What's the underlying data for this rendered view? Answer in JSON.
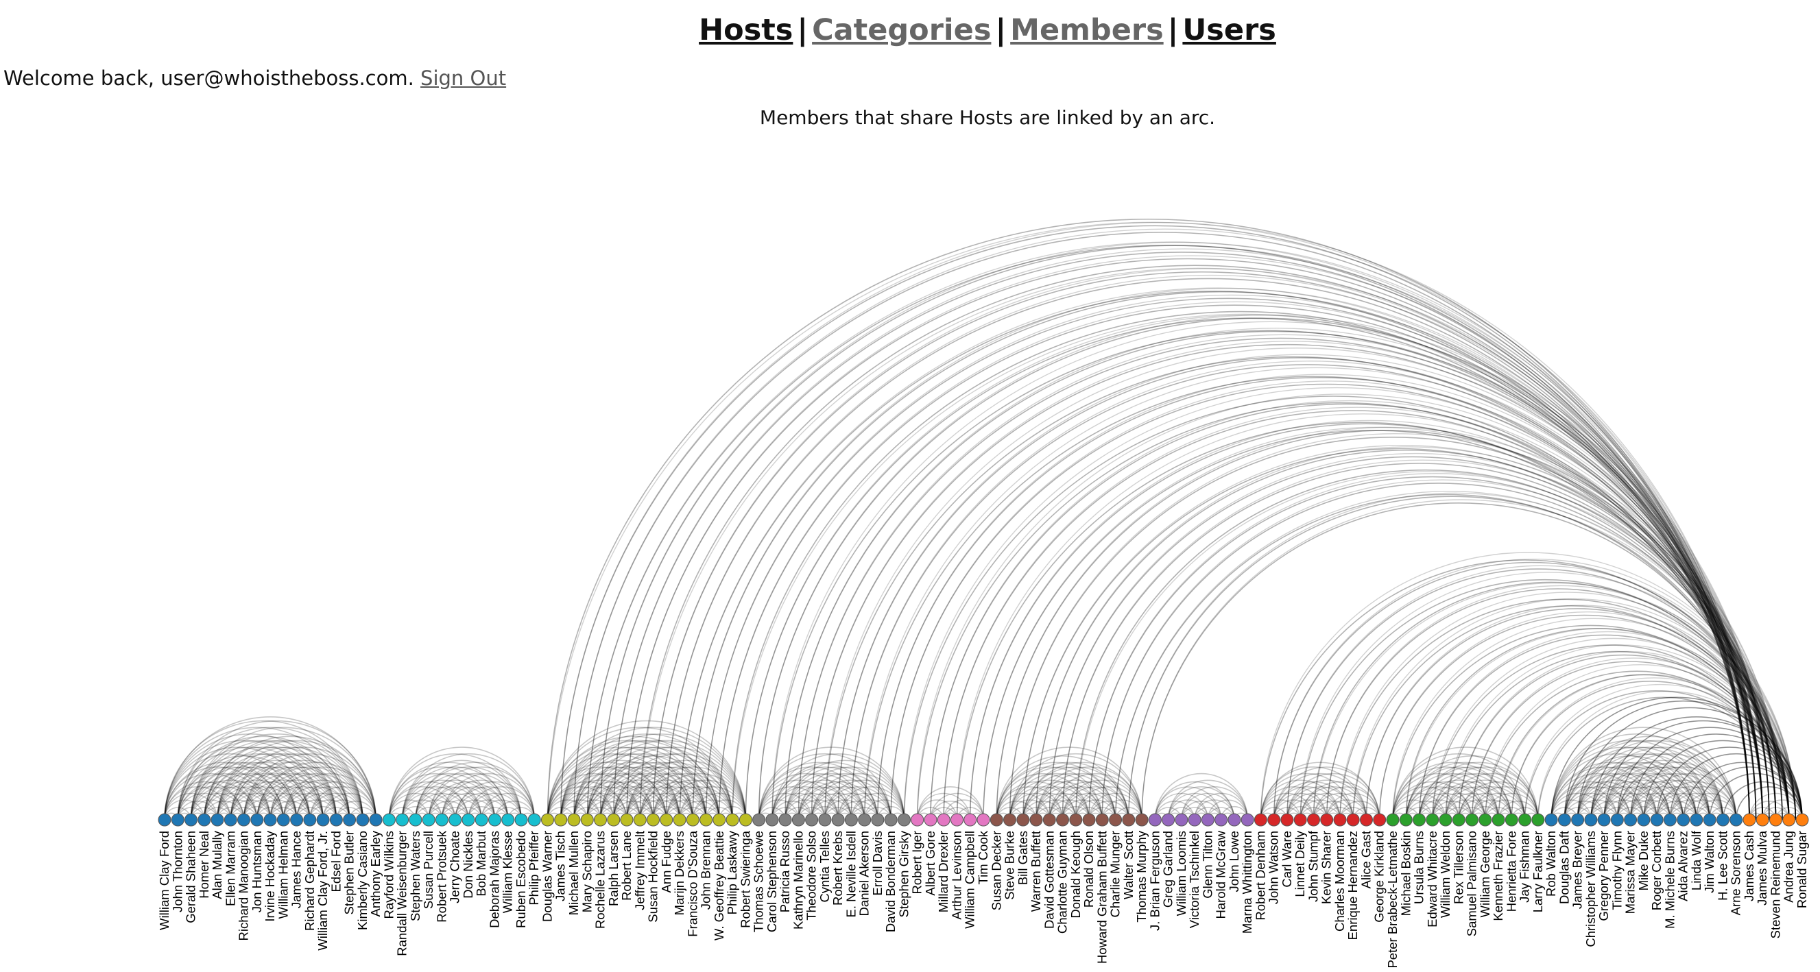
{
  "nav": {
    "items": [
      {
        "label": "Hosts",
        "dim": false
      },
      {
        "label": "Categories",
        "dim": true
      },
      {
        "label": "Members",
        "dim": true
      },
      {
        "label": "Users",
        "dim": false
      }
    ],
    "separator": "|"
  },
  "welcome": {
    "text": "Welcome back, user@whoistheboss.com.",
    "signout": "Sign Out"
  },
  "caption": "Members that share Hosts are linked by an arc.",
  "diagram": {
    "type": "arc-diagram",
    "groups": [
      {
        "color": "#1f77b4",
        "members": [
          "William Clay Ford",
          "John Thornton",
          "Gerald Shaheen",
          "Homer Neal",
          "Alan Mulally",
          "Ellen Marram",
          "Richard Manoogian",
          "Jon Huntsman",
          "Irvine Hockaday",
          "William Helman",
          "James Hance",
          "Richard Gephardt",
          "William Clay Ford, Jr.",
          "Edsel Ford",
          "Stephen Butler",
          "Kimberly Casiano",
          "Anthony Earley"
        ]
      },
      {
        "color": "#17becf",
        "members": [
          "Rayford Wilkins",
          "Randall Weisenburger",
          "Stephen Waters",
          "Susan Purcell",
          "Robert Protsuek",
          "Jerry Choate",
          "Don Nickles",
          "Bob Marbut",
          "Deborah Majoras",
          "William Klesse",
          "Ruben Escobedo",
          "Philip Pfeiffer"
        ]
      },
      {
        "color": "#bcbd22",
        "members": [
          "Douglas Warner",
          "James Tisch",
          "Michael Mullen",
          "Mary Schapiro",
          "Rochelle Lazarus",
          "Ralph Larsen",
          "Robert Lane",
          "Jeffrey Immelt",
          "Susan Hockfield",
          "Ann Fudge",
          "Marijn Dekkers",
          "Francisco D'Souza",
          "John Brennan",
          "W. Geoffrey Beattie",
          "Philip Laskawy",
          "Robert Swieringa"
        ]
      },
      {
        "color": "#7f7f7f",
        "members": [
          "Thomas Schoewe",
          "Carol Stephenson",
          "Patricia Russo",
          "Kathryn Marinello",
          "Theodore Solso",
          "Cyntia Telles",
          "Robert Krebs",
          "E. Neville Isdell",
          "Daniel Akerson",
          "Erroll Davis",
          "David Bonderman",
          "Stephen Girsky"
        ]
      },
      {
        "color": "#e377c2",
        "members": [
          "Robert Iger",
          "Albert Gore",
          "Millard Drexler",
          "Arthur Levinson",
          "William Campbell",
          "Tim Cook"
        ]
      },
      {
        "color": "#8c564b",
        "members": [
          "Susan Decker",
          "Steve Burke",
          "Bill Gates",
          "Warren Buffett",
          "David Gottesman",
          "Charlotte Guyman",
          "Donald Keough",
          "Ronald Olson",
          "Howard Graham Buffett",
          "Charlie Munger",
          "Walter Scott",
          "Thomas Murphy"
        ]
      },
      {
        "color": "#9467bd",
        "members": [
          "J. Brian Ferguson",
          "Greg Garland",
          "William Loomis",
          "Victoria Tschinkel",
          "Glenn Tilton",
          "Harold McGraw",
          "John Lowe",
          "Marna Whittington"
        ]
      },
      {
        "color": "#d62728",
        "members": [
          "Robert Denham",
          "John Watson",
          "Carl Ware",
          "Linnet Deily",
          "John Stumpf",
          "Kevin Sharer",
          "Charles Moorman",
          "Enrique Hernandez",
          "Alice Gast",
          "George Kirkland"
        ]
      },
      {
        "color": "#2ca02c",
        "members": [
          "Peter Brabeck-Letmathe",
          "Michael Boskin",
          "Ursula Burns",
          "Edward Whitacre",
          "William Weldon",
          "Rex Tillerson",
          "Samuel Palmisano",
          "William George",
          "Kenneth Frazier",
          "Henrietta Fore",
          "Jay Fishman",
          "Larry Faulkner"
        ]
      },
      {
        "color": "#1f77b4",
        "members": [
          "Rob Walton",
          "Douglas Daft",
          "James Breyer",
          "Christopher Williams",
          "Gregory Penner",
          "Timothy Flynn",
          "Marissa Mayer",
          "Mike Duke",
          "Roger Corbett",
          "M. Michele Burns",
          "Aida Alvarez",
          "Linda Wolf",
          "Jim Walton",
          "H. Lee Scott",
          "Arne Sorenson"
        ]
      },
      {
        "color": "#ff7f0e",
        "members": [
          "James Cash",
          "James Mulva",
          "Steven Reinemund",
          "Andrea Jung",
          "Ronald Sugar"
        ]
      }
    ]
  }
}
